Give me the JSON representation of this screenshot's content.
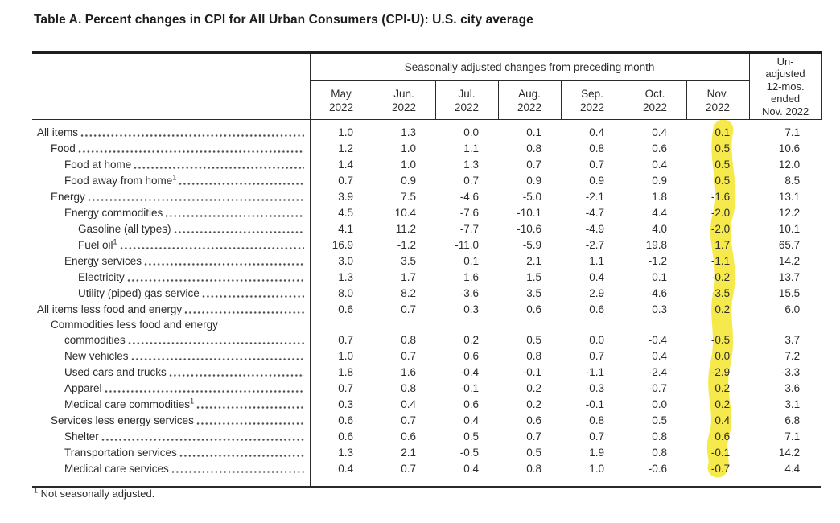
{
  "title": "Table A. Percent changes in CPI for All Urban Consumers (CPI-U): U.S. city average",
  "footnote_marker": "1",
  "footnote": "Not seasonally adjusted.",
  "highlight": {
    "color": "#f3e52b",
    "highlighted_column": "Nov. 2022"
  },
  "table": {
    "spanner": "Seasonally adjusted changes from preceding month",
    "columns": [
      {
        "label": "May",
        "year": "2022"
      },
      {
        "label": "Jun.",
        "year": "2022"
      },
      {
        "label": "Jul.",
        "year": "2022"
      },
      {
        "label": "Aug.",
        "year": "2022"
      },
      {
        "label": "Sep.",
        "year": "2022"
      },
      {
        "label": "Oct.",
        "year": "2022"
      },
      {
        "label": "Nov.",
        "year": "2022"
      }
    ],
    "last_column_lines": [
      "Un-",
      "adjusted",
      "12-mos.",
      "ended",
      "Nov. 2022"
    ],
    "rows": [
      {
        "label": "All items",
        "indent": 0,
        "values": [
          "1.0",
          "1.3",
          "0.0",
          "0.1",
          "0.4",
          "0.4",
          "0.1",
          "7.1"
        ]
      },
      {
        "label": "Food",
        "indent": 1,
        "values": [
          "1.2",
          "1.0",
          "1.1",
          "0.8",
          "0.8",
          "0.6",
          "0.5",
          "10.6"
        ]
      },
      {
        "label": "Food at home",
        "indent": 2,
        "values": [
          "1.4",
          "1.0",
          "1.3",
          "0.7",
          "0.7",
          "0.4",
          "0.5",
          "12.0"
        ]
      },
      {
        "label": "Food away from home",
        "sup": "1",
        "indent": 2,
        "values": [
          "0.7",
          "0.9",
          "0.7",
          "0.9",
          "0.9",
          "0.9",
          "0.5",
          "8.5"
        ]
      },
      {
        "label": "Energy",
        "indent": 1,
        "values": [
          "3.9",
          "7.5",
          "-4.6",
          "-5.0",
          "-2.1",
          "1.8",
          "-1.6",
          "13.1"
        ]
      },
      {
        "label": "Energy commodities",
        "indent": 2,
        "values": [
          "4.5",
          "10.4",
          "-7.6",
          "-10.1",
          "-4.7",
          "4.4",
          "-2.0",
          "12.2"
        ]
      },
      {
        "label": "Gasoline (all types)",
        "indent": 3,
        "values": [
          "4.1",
          "11.2",
          "-7.7",
          "-10.6",
          "-4.9",
          "4.0",
          "-2.0",
          "10.1"
        ]
      },
      {
        "label": "Fuel oil",
        "sup": "1",
        "indent": 3,
        "values": [
          "16.9",
          "-1.2",
          "-11.0",
          "-5.9",
          "-2.7",
          "19.8",
          "1.7",
          "65.7"
        ]
      },
      {
        "label": "Energy services",
        "indent": 2,
        "values": [
          "3.0",
          "3.5",
          "0.1",
          "2.1",
          "1.1",
          "-1.2",
          "-1.1",
          "14.2"
        ]
      },
      {
        "label": "Electricity",
        "indent": 3,
        "values": [
          "1.3",
          "1.7",
          "1.6",
          "1.5",
          "0.4",
          "0.1",
          "-0.2",
          "13.7"
        ]
      },
      {
        "label": "Utility (piped) gas service",
        "indent": 3,
        "values": [
          "8.0",
          "8.2",
          "-3.6",
          "3.5",
          "2.9",
          "-4.6",
          "-3.5",
          "15.5"
        ]
      },
      {
        "label": "All items less food and energy",
        "indent": 0,
        "values": [
          "0.6",
          "0.7",
          "0.3",
          "0.6",
          "0.6",
          "0.3",
          "0.2",
          "6.0"
        ]
      },
      {
        "label": "Commodities less food and energy",
        "label2": "commodities",
        "indent": 1,
        "values": [
          "0.7",
          "0.8",
          "0.2",
          "0.5",
          "0.0",
          "-0.4",
          "-0.5",
          "3.7"
        ]
      },
      {
        "label": "New vehicles",
        "indent": 2,
        "values": [
          "1.0",
          "0.7",
          "0.6",
          "0.8",
          "0.7",
          "0.4",
          "0.0",
          "7.2"
        ]
      },
      {
        "label": "Used cars and trucks",
        "indent": 2,
        "values": [
          "1.8",
          "1.6",
          "-0.4",
          "-0.1",
          "-1.1",
          "-2.4",
          "-2.9",
          "-3.3"
        ]
      },
      {
        "label": "Apparel",
        "indent": 2,
        "values": [
          "0.7",
          "0.8",
          "-0.1",
          "0.2",
          "-0.3",
          "-0.7",
          "0.2",
          "3.6"
        ]
      },
      {
        "label": "Medical care commodities",
        "sup": "1",
        "indent": 2,
        "values": [
          "0.3",
          "0.4",
          "0.6",
          "0.2",
          "-0.1",
          "0.0",
          "0.2",
          "3.1"
        ]
      },
      {
        "label": "Services less energy services",
        "indent": 1,
        "values": [
          "0.6",
          "0.7",
          "0.4",
          "0.6",
          "0.8",
          "0.5",
          "0.4",
          "6.8"
        ]
      },
      {
        "label": "Shelter",
        "indent": 2,
        "values": [
          "0.6",
          "0.6",
          "0.5",
          "0.7",
          "0.7",
          "0.8",
          "0.6",
          "7.1"
        ]
      },
      {
        "label": "Transportation services",
        "indent": 2,
        "values": [
          "1.3",
          "2.1",
          "-0.5",
          "0.5",
          "1.9",
          "0.8",
          "-0.1",
          "14.2"
        ]
      },
      {
        "label": "Medical care services",
        "indent": 2,
        "values": [
          "0.4",
          "0.7",
          "0.4",
          "0.8",
          "1.0",
          "-0.6",
          "-0.7",
          "4.4"
        ]
      }
    ]
  }
}
